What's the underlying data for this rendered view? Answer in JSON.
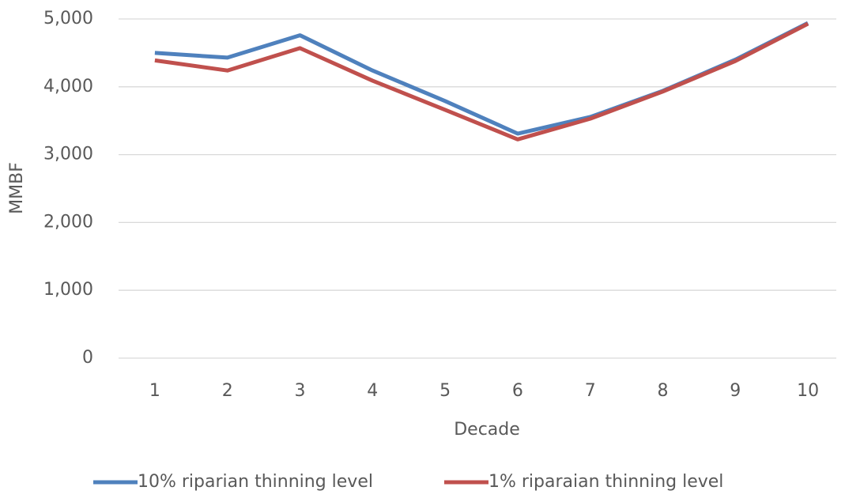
{
  "chart_data": {
    "type": "line",
    "x_label": "Decade",
    "y_label": "MMBF",
    "categories": [
      "1",
      "2",
      "3",
      "4",
      "5",
      "6",
      "7",
      "8",
      "9",
      "10"
    ],
    "series": [
      {
        "name": "10% riparian thinning level",
        "color": "#4f81bd",
        "values": [
          4500,
          4430,
          4760,
          4240,
          3790,
          3310,
          3555,
          3940,
          4400,
          4940
        ]
      },
      {
        "name": "1% riparaian thinning level",
        "color": "#c0504d",
        "values": [
          4390,
          4240,
          4570,
          4090,
          3660,
          3225,
          3530,
          3930,
          4380,
          4930
        ]
      }
    ],
    "ylim": [
      0,
      5000
    ],
    "yticks": [
      0,
      {
        "value": 1000,
        "label": "1,000"
      },
      {
        "value": 2000,
        "label": "2,000"
      },
      {
        "value": 3000,
        "label": "3,000"
      },
      {
        "value": 4000,
        "label": "4,000"
      },
      {
        "value": 5000,
        "label": "5,000"
      }
    ],
    "grid": true,
    "legend": "bottom"
  }
}
